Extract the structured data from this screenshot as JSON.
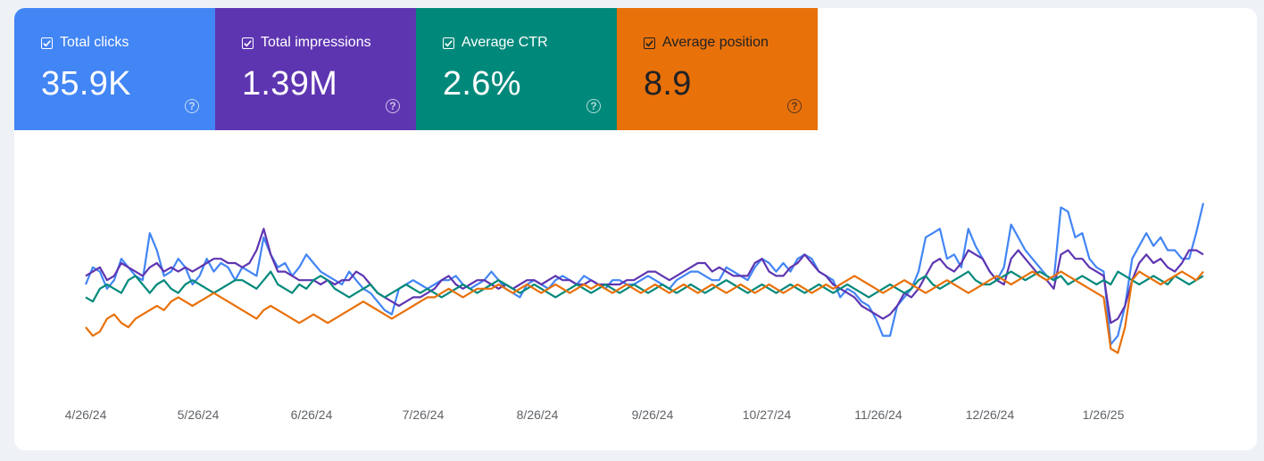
{
  "metrics": [
    {
      "label": "Total clicks",
      "value": "35.9K",
      "color": "#4285f4",
      "text": "light"
    },
    {
      "label": "Total impressions",
      "value": "1.39M",
      "color": "#5e35b1",
      "text": "light"
    },
    {
      "label": "Average CTR",
      "value": "2.6%",
      "color": "#00897b",
      "text": "light"
    },
    {
      "label": "Average position",
      "value": "8.9",
      "color": "#e8710a",
      "text": "dark"
    }
  ],
  "chart_data": {
    "type": "line",
    "x_tick_labels": [
      "4/26/24",
      "5/26/24",
      "6/26/24",
      "7/26/24",
      "8/26/24",
      "9/26/24",
      "10/27/24",
      "11/26/24",
      "12/26/24",
      "1/26/25"
    ],
    "y_axis_labels": "none",
    "grid": false,
    "legend": "none (metric tiles act as series toggles)",
    "series": [
      {
        "name": "Total clicks",
        "color": "#4285f4",
        "values": [
          50,
          58,
          56,
          48,
          52,
          62,
          58,
          54,
          52,
          74,
          66,
          54,
          56,
          62,
          58,
          50,
          54,
          62,
          56,
          60,
          58,
          52,
          58,
          56,
          54,
          72,
          64,
          58,
          60,
          54,
          58,
          64,
          60,
          56,
          54,
          52,
          50,
          56,
          52,
          48,
          46,
          42,
          38,
          36,
          48,
          50,
          52,
          50,
          48,
          50,
          52,
          52,
          54,
          50,
          48,
          50,
          52,
          56,
          52,
          48,
          46,
          44,
          50,
          52,
          50,
          48,
          52,
          54,
          52,
          50,
          54,
          52,
          50,
          48,
          52,
          52,
          50,
          50,
          52,
          54,
          52,
          50,
          48,
          52,
          54,
          56,
          56,
          54,
          52,
          52,
          58,
          56,
          54,
          52,
          58,
          62,
          60,
          56,
          60,
          56,
          62,
          64,
          62,
          56,
          54,
          52,
          44,
          48,
          46,
          42,
          40,
          34,
          26,
          26,
          40,
          44,
          48,
          56,
          72,
          74,
          76,
          62,
          64,
          58,
          76,
          68,
          62,
          56,
          52,
          58,
          78,
          72,
          66,
          62,
          58,
          54,
          52,
          86,
          84,
          72,
          74,
          62,
          58,
          56,
          22,
          26,
          40,
          62,
          68,
          74,
          68,
          72,
          66,
          66,
          62,
          62,
          74,
          88
        ]
      },
      {
        "name": "Total impressions",
        "color": "#5e35b1",
        "values": [
          54,
          56,
          58,
          52,
          54,
          60,
          58,
          56,
          54,
          58,
          60,
          56,
          58,
          56,
          58,
          56,
          58,
          60,
          62,
          62,
          60,
          60,
          58,
          60,
          66,
          76,
          64,
          56,
          56,
          54,
          52,
          52,
          52,
          50,
          52,
          50,
          52,
          52,
          56,
          54,
          50,
          46,
          44,
          42,
          40,
          42,
          44,
          44,
          46,
          48,
          52,
          54,
          50,
          48,
          50,
          52,
          52,
          50,
          48,
          50,
          48,
          50,
          52,
          52,
          50,
          52,
          54,
          52,
          52,
          50,
          50,
          52,
          50,
          50,
          50,
          50,
          52,
          52,
          54,
          56,
          56,
          54,
          52,
          54,
          56,
          58,
          60,
          60,
          56,
          58,
          56,
          54,
          54,
          54,
          60,
          62,
          56,
          54,
          54,
          58,
          60,
          64,
          60,
          56,
          54,
          50,
          48,
          46,
          44,
          40,
          38,
          36,
          34,
          36,
          40,
          46,
          44,
          48,
          54,
          60,
          62,
          58,
          56,
          60,
          66,
          64,
          62,
          56,
          52,
          50,
          62,
          66,
          62,
          58,
          54,
          52,
          48,
          64,
          66,
          62,
          62,
          58,
          56,
          54,
          32,
          34,
          40,
          52,
          60,
          64,
          60,
          62,
          58,
          56,
          60,
          66,
          66,
          64
        ]
      },
      {
        "name": "Average CTR",
        "color": "#00897b",
        "values": [
          44,
          42,
          48,
          50,
          48,
          46,
          52,
          54,
          50,
          46,
          50,
          52,
          48,
          46,
          50,
          52,
          50,
          48,
          46,
          48,
          50,
          52,
          52,
          50,
          48,
          52,
          56,
          50,
          48,
          46,
          50,
          48,
          52,
          54,
          52,
          48,
          46,
          44,
          46,
          48,
          50,
          46,
          44,
          46,
          48,
          50,
          48,
          46,
          48,
          46,
          44,
          46,
          48,
          50,
          48,
          46,
          48,
          50,
          52,
          50,
          48,
          46,
          48,
          50,
          48,
          46,
          44,
          46,
          48,
          50,
          48,
          46,
          48,
          50,
          48,
          46,
          48,
          50,
          48,
          46,
          48,
          50,
          48,
          46,
          48,
          50,
          48,
          46,
          48,
          50,
          52,
          50,
          48,
          46,
          48,
          50,
          48,
          46,
          48,
          50,
          48,
          46,
          48,
          50,
          48,
          46,
          48,
          50,
          48,
          46,
          44,
          46,
          48,
          50,
          48,
          46,
          48,
          52,
          54,
          50,
          48,
          50,
          52,
          54,
          56,
          52,
          50,
          50,
          52,
          54,
          56,
          54,
          52,
          54,
          56,
          54,
          52,
          54,
          50,
          52,
          54,
          52,
          50,
          52,
          50,
          56,
          54,
          52,
          50,
          52,
          54,
          52,
          50,
          54,
          52,
          50,
          52,
          54
        ]
      },
      {
        "name": "Average position",
        "color": "#e8710a",
        "values": [
          30,
          26,
          28,
          34,
          36,
          32,
          30,
          34,
          36,
          38,
          40,
          38,
          42,
          44,
          42,
          40,
          42,
          44,
          46,
          44,
          42,
          40,
          38,
          36,
          34,
          38,
          40,
          38,
          36,
          34,
          32,
          34,
          36,
          34,
          32,
          34,
          36,
          38,
          40,
          42,
          40,
          38,
          36,
          34,
          36,
          38,
          40,
          42,
          44,
          44,
          46,
          48,
          46,
          44,
          46,
          48,
          48,
          48,
          50,
          48,
          46,
          48,
          50,
          48,
          46,
          48,
          50,
          48,
          46,
          48,
          50,
          48,
          50,
          48,
          46,
          48,
          50,
          48,
          46,
          48,
          50,
          48,
          46,
          48,
          50,
          48,
          46,
          48,
          50,
          48,
          46,
          48,
          50,
          48,
          46,
          48,
          50,
          48,
          46,
          48,
          50,
          48,
          46,
          48,
          50,
          48,
          50,
          52,
          54,
          52,
          50,
          48,
          46,
          48,
          50,
          52,
          50,
          48,
          46,
          48,
          50,
          52,
          50,
          48,
          46,
          48,
          50,
          52,
          54,
          52,
          50,
          52,
          54,
          56,
          54,
          52,
          54,
          56,
          54,
          52,
          50,
          48,
          46,
          44,
          20,
          18,
          30,
          52,
          56,
          54,
          52,
          50,
          52,
          54,
          56,
          54,
          52,
          56
        ]
      }
    ]
  }
}
